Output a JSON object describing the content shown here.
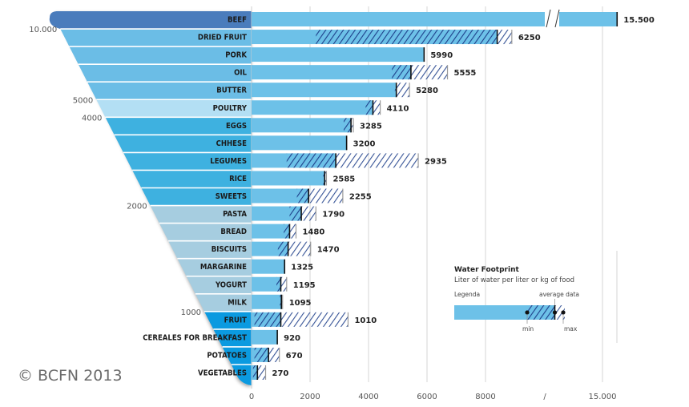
{
  "chart_data": {
    "type": "bar",
    "orientation": "horizontal",
    "title": "Water Footprint",
    "subtitle": "Liter of water per liter or kg of food",
    "xlim": [
      0,
      15500
    ],
    "axis_break_after": 8000,
    "x_ticks": [
      "0",
      "2000",
      "4000",
      "6000",
      "8000",
      "/",
      "15.000"
    ],
    "x_tick_values": [
      0,
      2000,
      4000,
      6000,
      8000,
      null,
      15000
    ],
    "funnel_ticks": [
      {
        "label": "10.000",
        "value": 10000
      },
      {
        "label": "5000",
        "value": 5000
      },
      {
        "label": "4000",
        "value": 4000
      },
      {
        "label": "2000",
        "value": 2000
      },
      {
        "label": "1000",
        "value": 1000
      },
      {
        "label": "0",
        "value": 0
      }
    ],
    "funnel_band_colors": [
      "#4a7cbc",
      "#6bbde6",
      "#b3dff4",
      "#3eb1e0",
      "#a6cde0",
      "#0b9ae0"
    ],
    "grid": true,
    "colors": {
      "bar": "#6dc1e8",
      "hatch": "#1e3f8a",
      "avg_line": "#111111",
      "max_line": "#9a9a9a"
    },
    "categories": [
      {
        "name": "BEEF",
        "label": "15.500",
        "value": 15500,
        "min": null,
        "avg": 15500,
        "max": null,
        "band": 0
      },
      {
        "name": "DRIED FRUIT",
        "label": "6250",
        "value": 6250,
        "min": 2200,
        "avg": 8400,
        "max": 8900,
        "band": 1
      },
      {
        "name": "PORK",
        "label": "5990",
        "value": 5990,
        "min": null,
        "avg": 5900,
        "max": null,
        "band": 1
      },
      {
        "name": "OIL",
        "label": "5555",
        "value": 5555,
        "min": 4800,
        "avg": 5450,
        "max": 6700,
        "band": 1
      },
      {
        "name": "BUTTER",
        "label": "5280",
        "value": 5280,
        "min": 4900,
        "avg": 4950,
        "max": 5400,
        "band": 1
      },
      {
        "name": "POULTRY",
        "label": "4110",
        "value": 4110,
        "min": 3900,
        "avg": 4150,
        "max": 4400,
        "band": 2
      },
      {
        "name": "EGGS",
        "label": "3285",
        "value": 3285,
        "min": 3150,
        "avg": 3400,
        "max": 3480,
        "band": 3
      },
      {
        "name": "CHHESE",
        "label": "3200",
        "value": 3200,
        "min": null,
        "avg": 3250,
        "max": null,
        "band": 3
      },
      {
        "name": "LEGUMES",
        "label": "2935",
        "value": 2935,
        "min": 1200,
        "avg": 2880,
        "max": 5700,
        "band": 3
      },
      {
        "name": "RICE",
        "label": "2585",
        "value": 2585,
        "min": 2450,
        "avg": 2500,
        "max": 2560,
        "band": 3
      },
      {
        "name": "SWEETS",
        "label": "2255",
        "value": 2255,
        "min": 1550,
        "avg": 1950,
        "max": 3120,
        "band": 3
      },
      {
        "name": "PASTA",
        "label": "1790",
        "value": 1790,
        "min": 1300,
        "avg": 1700,
        "max": 2200,
        "band": 4
      },
      {
        "name": "BREAD",
        "label": "1480",
        "value": 1480,
        "min": 1100,
        "avg": 1300,
        "max": 1520,
        "band": 4
      },
      {
        "name": "BISCUITS",
        "label": "1470",
        "value": 1470,
        "min": 900,
        "avg": 1250,
        "max": 2020,
        "band": 4
      },
      {
        "name": "MARGARINE",
        "label": "1325",
        "value": 1325,
        "min": null,
        "avg": 1130,
        "max": null,
        "band": 4
      },
      {
        "name": "YOGURT",
        "label": "1195",
        "value": 1195,
        "min": 850,
        "avg": 1000,
        "max": 1200,
        "band": 4
      },
      {
        "name": "MILK",
        "label": "1095",
        "value": 1095,
        "min": 970,
        "avg": 1020,
        "max": 1060,
        "band": 4
      },
      {
        "name": "FRUIT",
        "label": "1010",
        "value": 1010,
        "min": 100,
        "avg": 1000,
        "max": 3300,
        "band": 5
      },
      {
        "name": "CEREALES FOR BREAKFAST",
        "label": "920",
        "value": 920,
        "min": null,
        "avg": 880,
        "max": null,
        "band": 5
      },
      {
        "name": "POTATOES",
        "label": "670",
        "value": 670,
        "min": 100,
        "avg": 580,
        "max": 950,
        "band": 5
      },
      {
        "name": "VEGETABLES",
        "label": "270",
        "value": 270,
        "min": 50,
        "avg": 200,
        "max": 480,
        "band": 5
      }
    ],
    "legend": {
      "title": "Water Footprint",
      "subtitle": "Liter of water per liter or kg of food",
      "heading": "Legenda",
      "average_label": "average data",
      "min_label": "min",
      "max_label": "max"
    }
  },
  "footer": {
    "copyright": "© BCFN 2013"
  }
}
